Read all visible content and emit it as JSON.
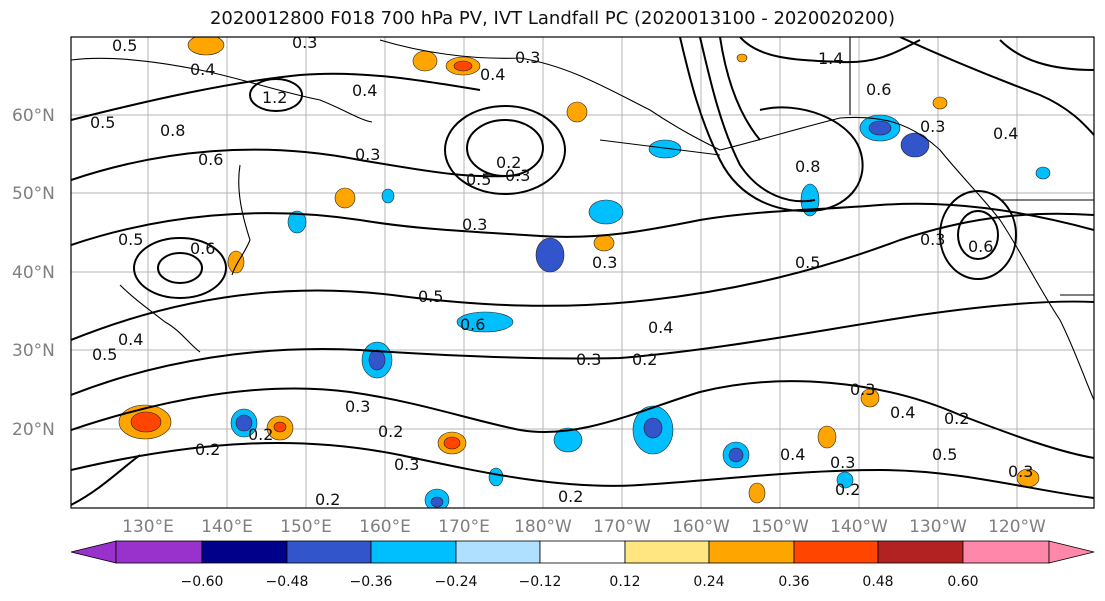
{
  "title": "2020012800 F018 700 hPa PV, IVT Landfall PC (2020013100 - 2020020200)",
  "map": {
    "lat_labels": [
      "60°N",
      "50°N",
      "40°N",
      "30°N",
      "20°N"
    ],
    "lon_labels": [
      "130°E",
      "140°E",
      "150°E",
      "160°E",
      "170°E",
      "180°W",
      "170°W",
      "160°W",
      "150°W",
      "140°W",
      "130°W",
      "120°W"
    ],
    "contour_labels": [
      "0.5",
      "0.4",
      "0.3",
      "0.4",
      "1.2",
      "0.8",
      "0.6",
      "0.5",
      "0.3",
      "0.4",
      "0.2",
      "0.3",
      "0.5",
      "0.3",
      "0.3",
      "1.4",
      "0.6",
      "0.3",
      "0.4",
      "0.8",
      "0.5",
      "0.3",
      "0.6",
      "0.5",
      "0.3",
      "0.6",
      "0.4",
      "0.6",
      "0.5",
      "0.5",
      "0.3",
      "0.2",
      "0.4",
      "0.3",
      "0.2",
      "0.3",
      "0.2",
      "0.3",
      "0.4",
      "0.3",
      "0.2",
      "0.4",
      "0.2",
      "0.5",
      "0.3",
      "0.2",
      "0.2",
      "0.2"
    ]
  },
  "colorbar": {
    "colors": [
      "#9932cc",
      "#00008b",
      "#3355cc",
      "#00bfff",
      "#b0e0ff",
      "#ffffff",
      "#ffe680",
      "#ffa500",
      "#ff4500",
      "#b22222",
      "#ff88aa"
    ],
    "tick_labels": [
      "−0.60",
      "−0.48",
      "−0.36",
      "−0.24",
      "−0.12",
      "0.12",
      "0.24",
      "0.36",
      "0.48",
      "0.60"
    ]
  }
}
